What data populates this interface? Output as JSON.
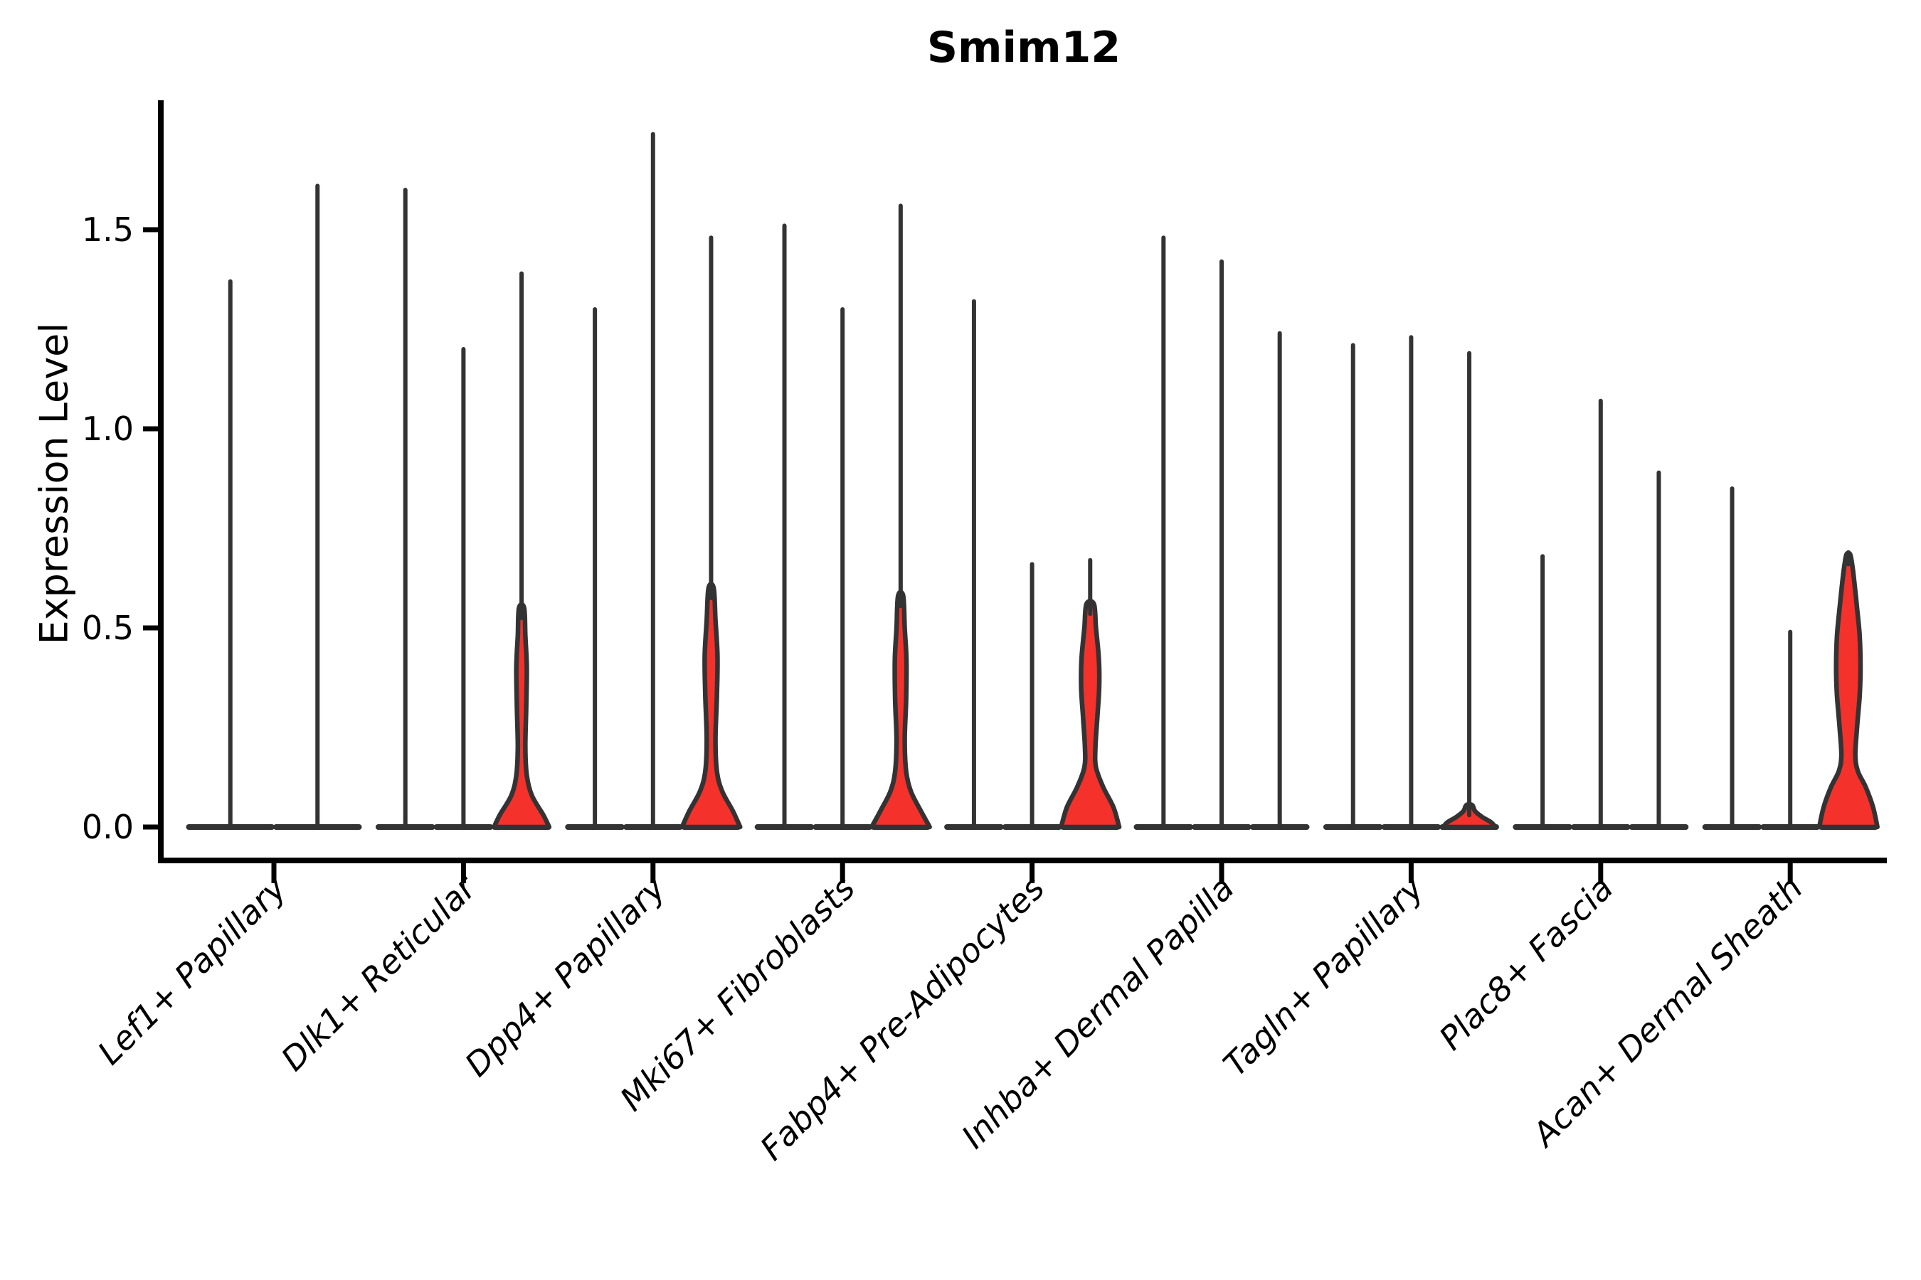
{
  "title": "Smim12",
  "axes": {
    "ylabel": "Expression Level",
    "ytick_labels": [
      "0.0",
      "0.5",
      "1.0",
      "1.5"
    ]
  },
  "chart_data": {
    "type": "violin",
    "title": "Smim12",
    "xlabel": "",
    "ylabel": "Expression Level",
    "ylim": [
      0,
      1.8
    ],
    "yticks": [
      0.0,
      0.5,
      1.0,
      1.5
    ],
    "grid": false,
    "legend_position": "none",
    "fill_color": "#f5312c",
    "outline_color": "#333333",
    "axis_color": "#000000",
    "categories": [
      "Lef1+ Papillary",
      "Dlk1+ Reticular",
      "Dpp4+ Papillary",
      "Mki67+ Fibroblasts",
      "Fabp4+ Pre-Adipocytes",
      "Inhba+ Dermal Papilla",
      "Tagln+ Papillary",
      "Plac8+ Fascia",
      "Acan+ Dermal Sheath"
    ],
    "groups": [
      {
        "label": "Lef1+ Papillary",
        "violins": [
          {
            "max": 1.37,
            "red_body": null
          },
          {
            "max": 1.61,
            "red_body": null
          }
        ]
      },
      {
        "label": "Dlk1+ Reticular",
        "violins": [
          {
            "max": 1.6,
            "red_body": null
          },
          {
            "max": 1.2,
            "red_body": null
          },
          {
            "max": 1.39,
            "red_body": [
              [
                0,
                0.95
              ],
              [
                0.03,
                0.75
              ],
              [
                0.08,
                0.35
              ],
              [
                0.13,
                0.18
              ],
              [
                0.2,
                0.13
              ],
              [
                0.3,
                0.16
              ],
              [
                0.4,
                0.18
              ],
              [
                0.48,
                0.13
              ],
              [
                0.55,
                0.09
              ]
            ]
          }
        ]
      },
      {
        "label": "Dpp4+ Papillary",
        "violins": [
          {
            "max": 1.3,
            "red_body": null
          },
          {
            "max": 1.74,
            "red_body": null
          },
          {
            "max": 1.48,
            "red_body": [
              [
                0,
                1.0
              ],
              [
                0.04,
                0.75
              ],
              [
                0.09,
                0.38
              ],
              [
                0.14,
                0.2
              ],
              [
                0.22,
                0.15
              ],
              [
                0.33,
                0.2
              ],
              [
                0.43,
                0.22
              ],
              [
                0.52,
                0.15
              ],
              [
                0.6,
                0.09
              ]
            ]
          }
        ]
      },
      {
        "label": "Mki67+ Fibroblasts",
        "violins": [
          {
            "max": 1.51,
            "red_body": null
          },
          {
            "max": 1.3,
            "red_body": null
          },
          {
            "max": 1.56,
            "red_body": [
              [
                0,
                1.0
              ],
              [
                0.04,
                0.7
              ],
              [
                0.09,
                0.35
              ],
              [
                0.14,
                0.19
              ],
              [
                0.22,
                0.14
              ],
              [
                0.32,
                0.19
              ],
              [
                0.42,
                0.2
              ],
              [
                0.5,
                0.14
              ],
              [
                0.58,
                0.09
              ]
            ]
          }
        ]
      },
      {
        "label": "Fabp4+ Pre-Adipocytes",
        "violins": [
          {
            "max": 1.32,
            "red_body": null
          },
          {
            "max": 0.66,
            "red_body": null
          },
          {
            "max": 0.67,
            "red_body": [
              [
                0,
                1.0
              ],
              [
                0.05,
                0.8
              ],
              [
                0.1,
                0.45
              ],
              [
                0.15,
                0.2
              ],
              [
                0.2,
                0.18
              ],
              [
                0.28,
                0.25
              ],
              [
                0.35,
                0.31
              ],
              [
                0.42,
                0.3
              ],
              [
                0.5,
                0.2
              ],
              [
                0.56,
                0.13
              ]
            ]
          }
        ]
      },
      {
        "label": "Inhba+ Dermal Papilla",
        "violins": [
          {
            "max": 1.48,
            "red_body": null
          },
          {
            "max": 1.42,
            "red_body": null
          },
          {
            "max": 1.24,
            "red_body": null
          }
        ]
      },
      {
        "label": "Tagln+ Papillary",
        "violins": [
          {
            "max": 1.21,
            "red_body": null
          },
          {
            "max": 1.23,
            "red_body": null
          },
          {
            "max": 1.19,
            "red_body": [
              [
                0,
                0.9
              ],
              [
                0.012,
                0.75
              ],
              [
                0.025,
                0.45
              ],
              [
                0.04,
                0.2
              ],
              [
                0.055,
                0.1
              ]
            ]
          }
        ]
      },
      {
        "label": "Plac8+ Fascia",
        "violins": [
          {
            "max": 0.68,
            "red_body": null
          },
          {
            "max": 1.07,
            "red_body": null
          },
          {
            "max": 0.89,
            "red_body": null
          }
        ]
      },
      {
        "label": "Acan+ Dermal Sheath",
        "violins": [
          {
            "max": 0.85,
            "red_body": null
          },
          {
            "max": 0.49,
            "red_body": null
          },
          {
            "max": 0.69,
            "red_body": [
              [
                0,
                1.0
              ],
              [
                0.05,
                0.85
              ],
              [
                0.1,
                0.6
              ],
              [
                0.14,
                0.33
              ],
              [
                0.18,
                0.24
              ],
              [
                0.25,
                0.3
              ],
              [
                0.33,
                0.39
              ],
              [
                0.4,
                0.42
              ],
              [
                0.48,
                0.39
              ],
              [
                0.55,
                0.3
              ],
              [
                0.62,
                0.2
              ],
              [
                0.66,
                0.13
              ],
              [
                0.685,
                0.06
              ]
            ]
          }
        ]
      }
    ]
  }
}
